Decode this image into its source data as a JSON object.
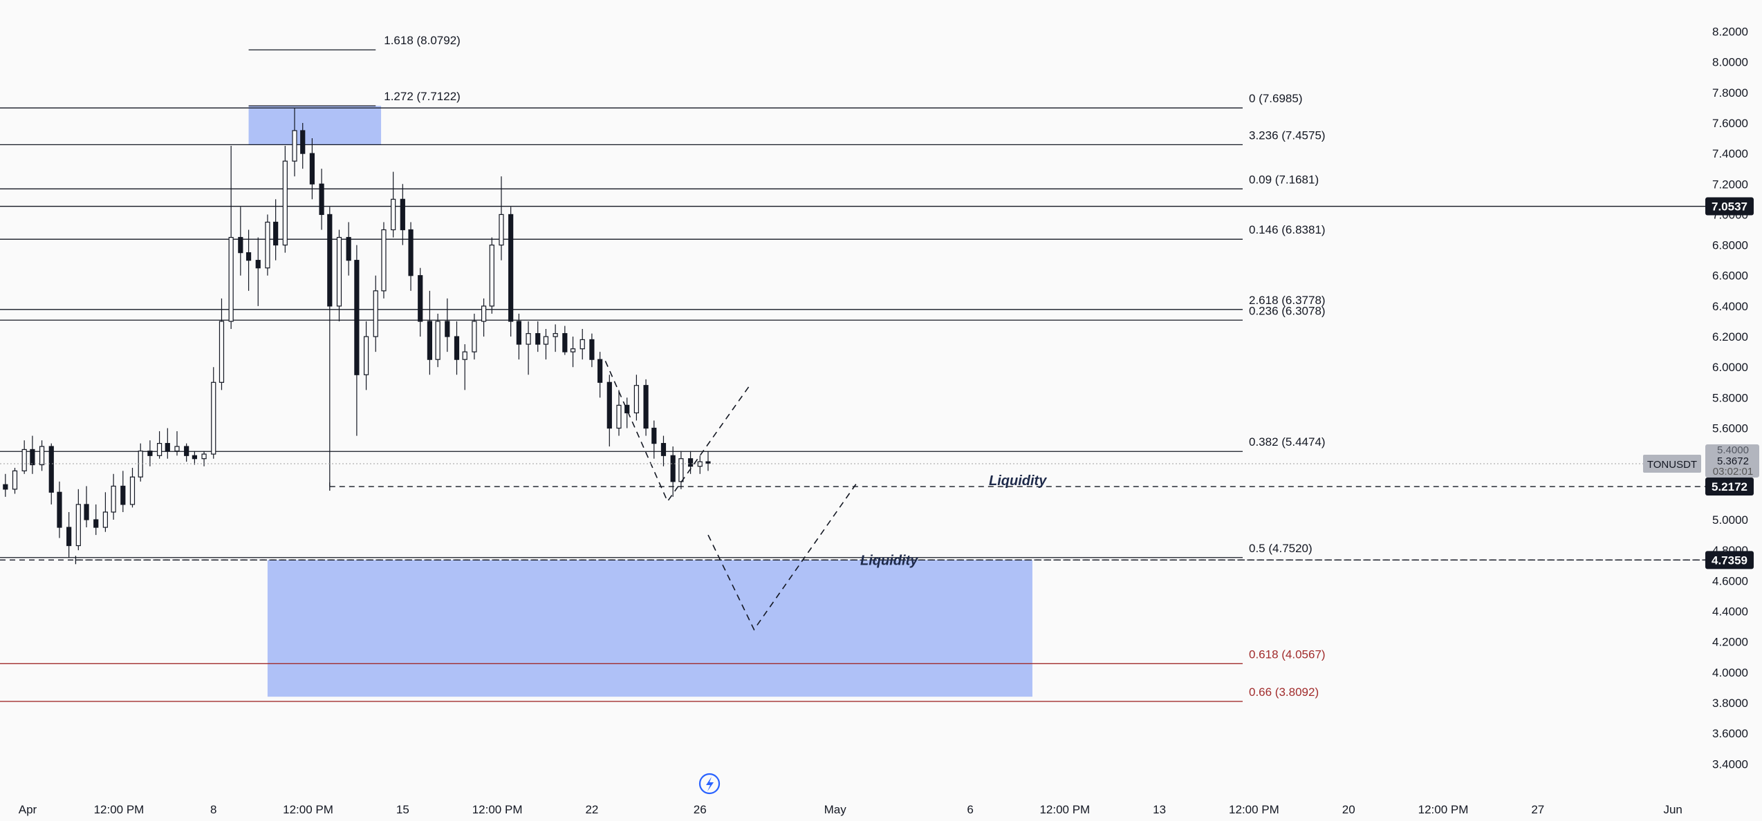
{
  "chart_data": {
    "type": "candlestick",
    "symbol": "TONUSDT",
    "y_axis": {
      "side": "right",
      "ticks": [
        "8.2000",
        "8.0000",
        "7.8000",
        "7.6000",
        "7.4000",
        "7.2000",
        "7.0000",
        "6.8000",
        "6.6000",
        "6.4000",
        "6.2000",
        "6.0000",
        "5.8000",
        "5.6000",
        "5.4000",
        "5.2000",
        "5.0000",
        "4.8000",
        "4.6000",
        "4.4000",
        "4.2000",
        "4.0000",
        "3.8000",
        "3.6000",
        "3.4000"
      ],
      "range": [
        3.27,
        8.27
      ]
    },
    "x_axis": {
      "ticks": [
        "Apr",
        "12:00 PM",
        "8",
        "12:00 PM",
        "15",
        "12:00 PM",
        "22",
        "26",
        "May",
        "6",
        "12:00 PM",
        "13",
        "12:00 PM",
        "20",
        "12:00 PM",
        "27",
        "Jun"
      ],
      "tick_days": [
        1,
        4.5,
        8,
        11.5,
        15,
        18.5,
        22,
        26,
        31,
        36,
        39.5,
        43,
        46.5,
        50,
        53.5,
        57,
        62
      ],
      "range": [
        0.1,
        63.3
      ]
    },
    "grid": false,
    "fib_levels": [
      {
        "label": "0 (7.6985)",
        "value": 7.6985,
        "color": "#131722",
        "x_start_day": 0.1
      },
      {
        "label": "3.236 (7.4575)",
        "value": 7.4575,
        "color": "#131722",
        "x_start_day": 0.1
      },
      {
        "label": "0.09 (7.1681)",
        "value": 7.1681,
        "color": "#131722",
        "x_start_day": 0.1
      },
      {
        "label": "0.146 (6.8381)",
        "value": 6.8381,
        "color": "#131722",
        "x_start_day": 0.1
      },
      {
        "label": "2.618 (6.3778)",
        "value": 6.3778,
        "color": "#131722",
        "x_start_day": 0.1
      },
      {
        "label": "0.236 (6.3078)",
        "value": 6.3078,
        "color": "#131722",
        "x_start_day": 0.1
      },
      {
        "label": "0.382 (5.4474)",
        "value": 5.4474,
        "color": "#131722",
        "x_start_day": 0.1
      },
      {
        "label": "0.5 (4.7520)",
        "value": 4.752,
        "color": "#131722",
        "x_start_day": 0.1
      },
      {
        "label": "0.618 (4.0567)",
        "value": 4.0567,
        "color": "#a12c2c",
        "x_start_day": 0.1
      },
      {
        "label": "0.66 (3.8092)",
        "value": 3.8092,
        "color": "#a12c2c",
        "x_start_day": 0.1
      }
    ],
    "extension_levels": [
      {
        "label": "1.618 (8.0792)",
        "value": 8.0792,
        "x_from_day": 9.3,
        "x_to_day": 14.0
      },
      {
        "label": "1.272 (7.7122)",
        "value": 7.7122,
        "x_from_day": 9.3,
        "x_to_day": 14.0
      }
    ],
    "horizontal_lines": [
      {
        "value": 7.0537,
        "badge": "7.0537",
        "style": "solid"
      },
      {
        "value": 4.7359,
        "badge": "4.7359",
        "style": "dashed"
      }
    ],
    "liquidity_lines": [
      {
        "label": "Liquidity",
        "value": 5.2172,
        "from_day": 12.3,
        "badge": "5.2172"
      },
      {
        "label": "Liquidity",
        "value": 4.7359,
        "from_day": 2.9
      }
    ],
    "zones": [
      {
        "from_day": 9.3,
        "to_day": 14.2,
        "top": 7.7122,
        "bottom": 7.4575,
        "color": "#8fa8f5"
      },
      {
        "from_day": 10.0,
        "to_day": 38.3,
        "top": 4.7359,
        "bottom": 3.84,
        "color": "#8fa8f5"
      }
    ],
    "projections": [
      {
        "points": [
          [
            22.5,
            6.04
          ],
          [
            24.8,
            5.12
          ],
          [
            27.8,
            5.87
          ]
        ],
        "style": "dashed"
      },
      {
        "points": [
          [
            26.3,
            4.9
          ],
          [
            28.0,
            4.28
          ],
          [
            31.8,
            5.24
          ]
        ],
        "style": "dashed"
      }
    ],
    "last_price": {
      "symbol": "TONUSDT",
      "price": "5.3672",
      "countdown": "03:02:01",
      "overlay_tick": "5.4000"
    },
    "candles": [
      [
        0.3,
        5.23,
        5.3,
        5.15,
        5.2
      ],
      [
        0.65,
        5.2,
        5.34,
        5.17,
        5.32
      ],
      [
        1.0,
        5.32,
        5.52,
        5.3,
        5.46
      ],
      [
        1.3,
        5.46,
        5.55,
        5.3,
        5.36
      ],
      [
        1.65,
        5.36,
        5.52,
        5.32,
        5.48
      ],
      [
        2.0,
        5.48,
        5.5,
        5.1,
        5.18
      ],
      [
        2.3,
        5.18,
        5.25,
        4.88,
        4.95
      ],
      [
        2.65,
        4.95,
        5.05,
        4.75,
        4.83
      ],
      [
        3.0,
        4.83,
        5.2,
        4.8,
        5.1
      ],
      [
        3.3,
        5.1,
        5.22,
        4.95,
        5.0
      ],
      [
        3.65,
        5.0,
        5.1,
        4.9,
        4.95
      ],
      [
        4.0,
        4.95,
        5.18,
        4.92,
        5.05
      ],
      [
        4.3,
        5.05,
        5.3,
        5.0,
        5.22
      ],
      [
        4.65,
        5.22,
        5.32,
        5.05,
        5.1
      ],
      [
        5.0,
        5.1,
        5.34,
        5.08,
        5.28
      ],
      [
        5.3,
        5.28,
        5.5,
        5.25,
        5.45
      ],
      [
        5.65,
        5.45,
        5.52,
        5.35,
        5.42
      ],
      [
        6.0,
        5.42,
        5.58,
        5.4,
        5.5
      ],
      [
        6.3,
        5.5,
        5.6,
        5.4,
        5.45
      ],
      [
        6.65,
        5.45,
        5.58,
        5.42,
        5.48
      ],
      [
        7.0,
        5.48,
        5.5,
        5.38,
        5.42
      ],
      [
        7.3,
        5.42,
        5.45,
        5.36,
        5.4
      ],
      [
        7.65,
        5.4,
        5.45,
        5.35,
        5.43
      ],
      [
        8.0,
        5.43,
        6.0,
        5.4,
        5.9
      ],
      [
        8.3,
        5.9,
        6.45,
        5.85,
        6.3
      ],
      [
        8.65,
        6.3,
        7.45,
        6.25,
        6.85
      ],
      [
        9.0,
        6.85,
        7.05,
        6.6,
        6.75
      ],
      [
        9.3,
        6.75,
        6.9,
        6.5,
        6.7
      ],
      [
        9.65,
        6.7,
        6.85,
        6.4,
        6.65
      ],
      [
        10.0,
        6.65,
        7.0,
        6.6,
        6.95
      ],
      [
        10.3,
        6.95,
        7.1,
        6.7,
        6.8
      ],
      [
        10.65,
        6.8,
        7.45,
        6.75,
        7.35
      ],
      [
        11.0,
        7.35,
        7.7,
        7.25,
        7.55
      ],
      [
        11.3,
        7.55,
        7.6,
        7.3,
        7.4
      ],
      [
        11.65,
        7.4,
        7.5,
        7.1,
        7.2
      ],
      [
        12.0,
        7.2,
        7.3,
        6.9,
        7.0
      ],
      [
        12.3,
        7.0,
        7.05,
        5.22,
        6.4
      ],
      [
        12.65,
        6.4,
        6.9,
        6.3,
        6.85
      ],
      [
        13.0,
        6.85,
        6.95,
        6.6,
        6.7
      ],
      [
        13.3,
        6.7,
        6.8,
        5.55,
        5.95
      ],
      [
        13.65,
        5.95,
        6.3,
        5.85,
        6.2
      ],
      [
        14.0,
        6.2,
        6.6,
        6.1,
        6.5
      ],
      [
        14.3,
        6.5,
        6.95,
        6.45,
        6.9
      ],
      [
        14.65,
        6.9,
        7.28,
        6.85,
        7.1
      ],
      [
        15.0,
        7.1,
        7.2,
        6.8,
        6.9
      ],
      [
        15.3,
        6.9,
        6.95,
        6.5,
        6.6
      ],
      [
        15.65,
        6.6,
        6.65,
        6.2,
        6.3
      ],
      [
        16.0,
        6.3,
        6.5,
        5.95,
        6.05
      ],
      [
        16.3,
        6.05,
        6.35,
        6.0,
        6.3
      ],
      [
        16.65,
        6.3,
        6.45,
        6.1,
        6.2
      ],
      [
        17.0,
        6.2,
        6.3,
        5.95,
        6.05
      ],
      [
        17.3,
        6.05,
        6.15,
        5.85,
        6.1
      ],
      [
        17.65,
        6.1,
        6.35,
        6.05,
        6.3
      ],
      [
        18.0,
        6.3,
        6.45,
        6.2,
        6.4
      ],
      [
        18.3,
        6.4,
        6.85,
        6.35,
        6.8
      ],
      [
        18.65,
        6.8,
        7.25,
        6.7,
        7.0
      ],
      [
        19.0,
        7.0,
        7.05,
        6.2,
        6.3
      ],
      [
        19.3,
        6.3,
        6.35,
        6.05,
        6.15
      ],
      [
        19.65,
        6.15,
        6.3,
        5.95,
        6.22
      ],
      [
        20.0,
        6.22,
        6.3,
        6.1,
        6.15
      ],
      [
        20.3,
        6.15,
        6.25,
        6.05,
        6.2
      ],
      [
        20.65,
        6.2,
        6.28,
        6.1,
        6.22
      ],
      [
        21.0,
        6.22,
        6.27,
        6.08,
        6.1
      ],
      [
        21.3,
        6.1,
        6.2,
        6.0,
        6.12
      ],
      [
        21.65,
        6.12,
        6.25,
        6.05,
        6.18
      ],
      [
        22.0,
        6.18,
        6.22,
        6.0,
        6.05
      ],
      [
        22.3,
        6.05,
        6.1,
        5.8,
        5.9
      ],
      [
        22.65,
        5.9,
        5.95,
        5.48,
        5.6
      ],
      [
        23.0,
        5.6,
        5.85,
        5.55,
        5.75
      ],
      [
        23.3,
        5.75,
        5.8,
        5.6,
        5.7
      ],
      [
        23.65,
        5.7,
        5.95,
        5.65,
        5.88
      ],
      [
        24.0,
        5.88,
        5.92,
        5.55,
        5.6
      ],
      [
        24.3,
        5.6,
        5.65,
        5.4,
        5.5
      ],
      [
        24.65,
        5.5,
        5.55,
        5.35,
        5.42
      ],
      [
        25.0,
        5.42,
        5.48,
        5.15,
        5.25
      ],
      [
        25.3,
        5.25,
        5.45,
        5.2,
        5.4
      ],
      [
        25.65,
        5.4,
        5.45,
        5.3,
        5.35
      ],
      [
        26.0,
        5.35,
        5.42,
        5.3,
        5.38
      ],
      [
        26.3,
        5.38,
        5.45,
        5.32,
        5.37
      ]
    ]
  }
}
